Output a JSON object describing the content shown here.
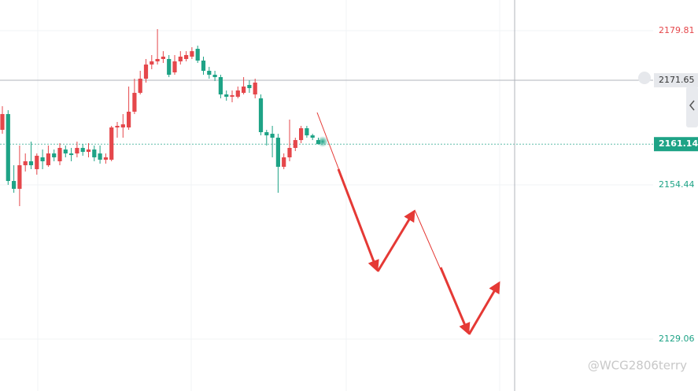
{
  "chart_data": {
    "type": "candlestick",
    "open": [
      2163.5,
      2166.09,
      2155.08,
      2153.79,
      2157.67,
      2158.32,
      2157.02,
      2158.97,
      2157.67,
      2159.61,
      2158.32,
      2160.26,
      2159.61,
      2159.61,
      2160.52,
      2159.87,
      2160.26,
      2159.61,
      2158.58,
      2158.58,
      2163.89,
      2163.89,
      2163.89,
      2166.48,
      2169.58,
      2171.91,
      2174.24,
      2174.76,
      2175.15,
      2175.15,
      2172.95,
      2174.76,
      2175.15,
      2175.54,
      2176.83,
      2174.89,
      2173.21,
      2172.56,
      2172.17,
      2169.32,
      2168.94,
      2168.94,
      2169.58,
      2170.88,
      2169.32,
      2168.68,
      2163.11,
      2162.85,
      2162.2,
      2157.41,
      2158.97,
      2160.52,
      2161.81,
      2163.76,
      2162.59,
      2161.81
    ],
    "high": [
      2167.38,
      2166.73,
      2157.67,
      2160.91,
      2159.61,
      2161.56,
      2159.61,
      2160.26,
      2160.91,
      2160.26,
      2161.3,
      2160.91,
      2160.52,
      2161.56,
      2161.17,
      2161.3,
      2160.91,
      2160.91,
      2159.61,
      2164.15,
      2164.79,
      2166.09,
      2170.62,
      2171.91,
      2173.21,
      2175.15,
      2175.8,
      2180.07,
      2176.44,
      2175.8,
      2175.8,
      2176.44,
      2176.44,
      2177.09,
      2177.35,
      2175.54,
      2173.86,
      2173.21,
      2172.56,
      2169.97,
      2169.97,
      2170.62,
      2172.17,
      2171.65,
      2171.91,
      2169.32,
      2163.5,
      2164.15,
      2162.85,
      2159.61,
      2165.18,
      2162.2,
      2164.15,
      2164.15,
      2162.85,
      2162.2
    ],
    "low": [
      2162.85,
      2154.44,
      2153.14,
      2150.94,
      2156.64,
      2157.02,
      2156.12,
      2157.02,
      2157.41,
      2158.32,
      2157.67,
      2158.97,
      2158.32,
      2158.97,
      2159.23,
      2158.97,
      2158.32,
      2157.93,
      2157.93,
      2158.32,
      2162.2,
      2162.2,
      2163.5,
      2166.09,
      2169.32,
      2171.27,
      2173.47,
      2174.24,
      2174.5,
      2172.17,
      2172.56,
      2174.24,
      2174.76,
      2175.15,
      2174.5,
      2172.56,
      2171.91,
      2171.52,
      2168.68,
      2168.29,
      2168.03,
      2168.68,
      2169.32,
      2169.58,
      2168.68,
      2162.59,
      2160.91,
      2158.97,
      2153.14,
      2157.02,
      2158.32,
      2160.0,
      2161.3,
      2162.2,
      2161.81,
      2161.17
    ],
    "close": [
      2166.09,
      2155.08,
      2153.79,
      2157.67,
      2158.32,
      2157.67,
      2159.23,
      2158.32,
      2159.61,
      2158.97,
      2160.52,
      2159.61,
      2159.35,
      2160.52,
      2159.87,
      2160.26,
      2158.97,
      2158.58,
      2158.97,
      2163.89,
      2164.15,
      2164.4,
      2166.48,
      2169.58,
      2171.91,
      2174.24,
      2174.76,
      2175.15,
      2175.54,
      2172.56,
      2174.76,
      2175.54,
      2175.8,
      2176.44,
      2174.89,
      2173.21,
      2172.56,
      2172.17,
      2169.32,
      2168.94,
      2169.19,
      2169.97,
      2170.62,
      2170.36,
      2171.27,
      2163.11,
      2162.59,
      2162.2,
      2157.41,
      2158.97,
      2160.52,
      2161.81,
      2163.76,
      2162.59,
      2162.2,
      2161.14
    ],
    "up_color": "#e5474b",
    "down_color": "#1ea386",
    "ylim": [
      2120.52,
      2184.86
    ],
    "yticks": [
      2179.81,
      2154.44,
      2129.06
    ],
    "crosshair_price": 2171.65,
    "last_price": 2161.14,
    "watermark": "@WCG2806terry"
  }
}
